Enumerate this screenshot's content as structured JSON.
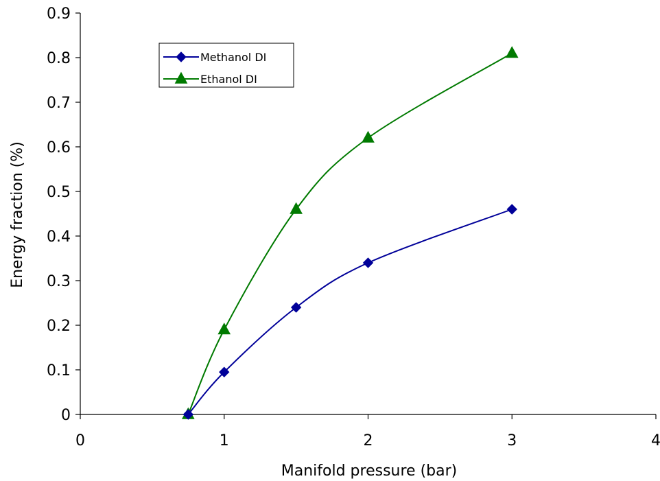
{
  "chart_data": {
    "type": "line",
    "xlabel": "Manifold pressure (bar)",
    "ylabel": "Energy fraction (%)",
    "xlim": [
      0,
      4
    ],
    "ylim": [
      0,
      0.9
    ],
    "xticks": [
      "0",
      "1",
      "2",
      "3",
      "4"
    ],
    "yticks": [
      "0",
      "0.1",
      "0.2",
      "0.3",
      "0.4",
      "0.5",
      "0.6",
      "0.7",
      "0.8",
      "0.9"
    ],
    "grid": false,
    "legend_position": "top-left",
    "series": [
      {
        "name": "Methanol DI",
        "marker": "diamond",
        "color": "#000099",
        "x": [
          0.75,
          1,
          1.5,
          2,
          3
        ],
        "y": [
          0,
          0.095,
          0.24,
          0.34,
          0.46
        ]
      },
      {
        "name": "Ethanol DI",
        "marker": "triangle",
        "color": "#007A00",
        "x": [
          0.75,
          1,
          1.5,
          2,
          3
        ],
        "y": [
          0,
          0.19,
          0.46,
          0.62,
          0.81
        ]
      }
    ]
  }
}
